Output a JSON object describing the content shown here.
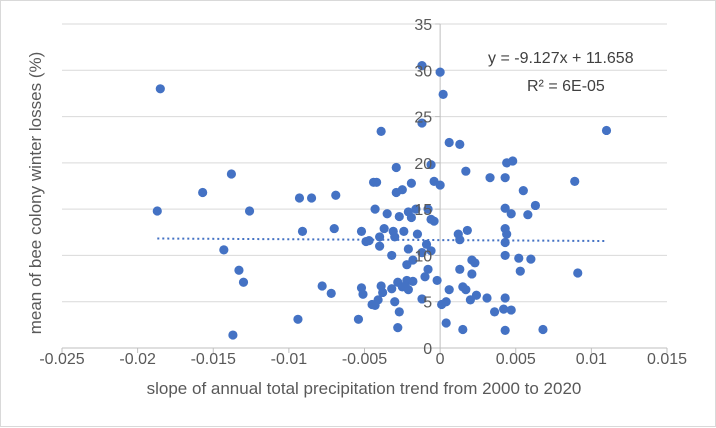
{
  "chart_data": {
    "type": "scatter",
    "xlabel": "slope of annual total precipitation trend from 2000 to 2020",
    "ylabel": "mean of bee colony winter losses (%)",
    "xlim": [
      -0.025,
      0.015
    ],
    "ylim": [
      0,
      35
    ],
    "x_ticks": [
      "-0.025",
      "-0.02",
      "-0.015",
      "-0.01",
      "-0.005",
      "0",
      "0.005",
      "0.01",
      "0.015"
    ],
    "y_ticks": [
      "0",
      "5",
      "10",
      "15",
      "20",
      "25",
      "30",
      "35"
    ],
    "grid": "horizontal",
    "marker_color": "#4472C4",
    "trendline": {
      "style": "dotted linear",
      "equation": "y = -9.127x + 11.658",
      "r_squared": "R² = 6E-05",
      "slope": -9.127,
      "intercept": 11.658,
      "x_range": [
        -0.0187,
        0.011
      ]
    },
    "points": [
      [
        -0.0185,
        28.0
      ],
      [
        -0.0187,
        14.8
      ],
      [
        -0.0157,
        16.8
      ],
      [
        -0.0138,
        18.8
      ],
      [
        -0.0143,
        10.6
      ],
      [
        -0.0133,
        8.4
      ],
      [
        -0.013,
        7.1
      ],
      [
        -0.0126,
        14.8
      ],
      [
        -0.0137,
        1.4
      ],
      [
        -0.0093,
        16.2
      ],
      [
        -0.0085,
        16.2
      ],
      [
        -0.0091,
        12.6
      ],
      [
        -0.0094,
        3.1
      ],
      [
        -0.0069,
        16.5
      ],
      [
        -0.007,
        12.9
      ],
      [
        -0.0078,
        6.7
      ],
      [
        -0.0072,
        5.9
      ],
      [
        -0.0052,
        12.6
      ],
      [
        -0.0049,
        11.5
      ],
      [
        -0.0047,
        11.6
      ],
      [
        -0.0052,
        6.5
      ],
      [
        -0.0051,
        5.8
      ],
      [
        -0.0054,
        3.1
      ],
      [
        -0.0044,
        17.9
      ],
      [
        -0.0042,
        17.9
      ],
      [
        -0.0043,
        15.0
      ],
      [
        -0.0039,
        23.4
      ],
      [
        -0.004,
        12.0
      ],
      [
        -0.004,
        11.0
      ],
      [
        -0.0037,
        12.9
      ],
      [
        -0.0039,
        6.7
      ],
      [
        -0.0038,
        6.0
      ],
      [
        -0.0045,
        4.7
      ],
      [
        -0.0043,
        4.6
      ],
      [
        -0.0041,
        5.2
      ],
      [
        -0.0029,
        19.5
      ],
      [
        -0.0025,
        17.1
      ],
      [
        -0.0029,
        16.8
      ],
      [
        -0.0035,
        14.5
      ],
      [
        -0.0027,
        14.2
      ],
      [
        -0.0031,
        12.6
      ],
      [
        -0.003,
        12.0
      ],
      [
        -0.0024,
        12.6
      ],
      [
        -0.0032,
        10.0
      ],
      [
        -0.0028,
        7.1
      ],
      [
        -0.0025,
        6.6
      ],
      [
        -0.003,
        5.0
      ],
      [
        -0.0027,
        3.9
      ],
      [
        -0.0028,
        2.2
      ],
      [
        -0.0032,
        6.4
      ],
      [
        -0.0019,
        17.8
      ],
      [
        -0.0016,
        15.0
      ],
      [
        -0.0021,
        14.7
      ],
      [
        -0.0019,
        14.1
      ],
      [
        -0.0015,
        12.3
      ],
      [
        -0.0021,
        10.7
      ],
      [
        -0.0018,
        9.5
      ],
      [
        -0.0022,
        9.0
      ],
      [
        -0.0022,
        7.3
      ],
      [
        -0.0018,
        7.2
      ],
      [
        -0.0023,
        6.7
      ],
      [
        -0.0021,
        6.3
      ],
      [
        -0.0012,
        30.5
      ],
      [
        -0.0012,
        24.3
      ],
      [
        -0.0006,
        19.8
      ],
      [
        -0.0004,
        18.0
      ],
      [
        -0.0008,
        15.0
      ],
      [
        -0.0006,
        13.9
      ],
      [
        -0.0004,
        13.7
      ],
      [
        -0.0009,
        11.2
      ],
      [
        -0.0012,
        10.3
      ],
      [
        -0.0006,
        10.5
      ],
      [
        -0.0008,
        8.5
      ],
      [
        -0.001,
        7.7
      ],
      [
        -0.0012,
        5.3
      ],
      [
        -0.0002,
        7.3
      ],
      [
        0.0,
        29.8
      ],
      [
        0.0002,
        27.4
      ],
      [
        0.0,
        17.6
      ],
      [
        0.0006,
        22.2
      ],
      [
        0.0013,
        22.0
      ],
      [
        0.0017,
        19.1
      ],
      [
        0.0012,
        12.3
      ],
      [
        0.0018,
        12.7
      ],
      [
        0.0013,
        11.7
      ],
      [
        0.0021,
        9.5
      ],
      [
        0.0023,
        9.2
      ],
      [
        0.0013,
        8.5
      ],
      [
        0.0021,
        8.0
      ],
      [
        0.0015,
        6.6
      ],
      [
        0.0017,
        6.3
      ],
      [
        0.0006,
        6.3
      ],
      [
        0.0024,
        5.7
      ],
      [
        0.002,
        5.2
      ],
      [
        0.0031,
        5.4
      ],
      [
        0.0001,
        4.7
      ],
      [
        0.0004,
        5.0
      ],
      [
        0.0004,
        2.7
      ],
      [
        0.0015,
        2.0
      ],
      [
        0.0033,
        18.4
      ],
      [
        0.0043,
        18.4
      ],
      [
        0.0044,
        20.0
      ],
      [
        0.0048,
        20.2
      ],
      [
        0.0055,
        17.0
      ],
      [
        0.0063,
        15.4
      ],
      [
        0.0043,
        15.1
      ],
      [
        0.0047,
        14.5
      ],
      [
        0.0058,
        14.4
      ],
      [
        0.0043,
        12.9
      ],
      [
        0.0044,
        12.3
      ],
      [
        0.0043,
        11.4
      ],
      [
        0.0043,
        10.0
      ],
      [
        0.0052,
        9.7
      ],
      [
        0.006,
        9.6
      ],
      [
        0.0053,
        8.3
      ],
      [
        0.0043,
        5.4
      ],
      [
        0.0042,
        4.2
      ],
      [
        0.0047,
        4.1
      ],
      [
        0.0043,
        1.9
      ],
      [
        0.0068,
        2.0
      ],
      [
        0.0089,
        18.0
      ],
      [
        0.0091,
        8.1
      ],
      [
        0.011,
        23.5
      ],
      [
        0.0036,
        3.9
      ]
    ]
  }
}
